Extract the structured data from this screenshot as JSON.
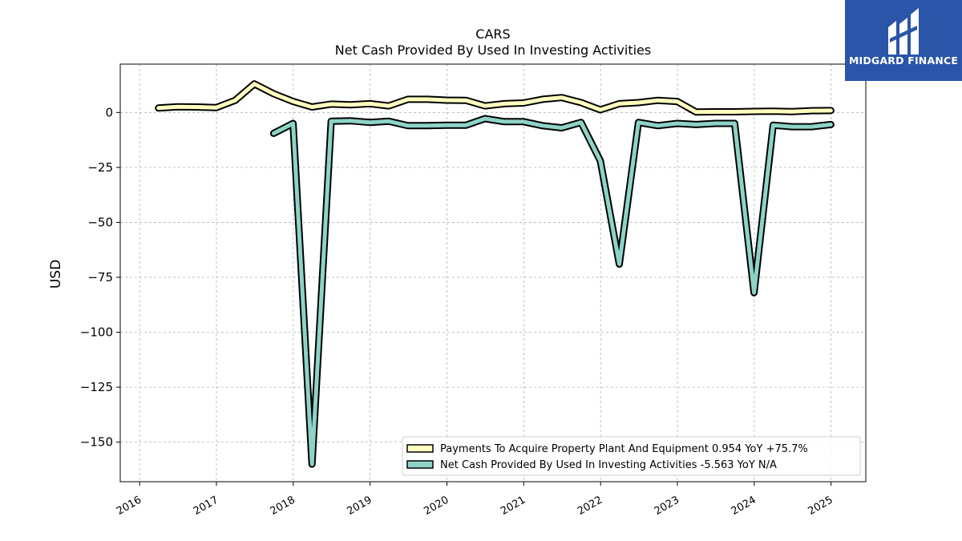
{
  "brand": {
    "name": "MIDGARD FINANCE",
    "colors": {
      "background": "#2a55a8",
      "text": "#ffffff"
    }
  },
  "chart_data": {
    "type": "line",
    "title": "CARS",
    "subtitle": "Net Cash Provided By Used In Investing Activities",
    "xlabel": "",
    "ylabel": "USD",
    "xlim": [
      "2015-10-01",
      "2025-06-15"
    ],
    "ylim": [
      -168,
      22
    ],
    "x_ticks": [
      "2016",
      "2017",
      "2018",
      "2019",
      "2020",
      "2021",
      "2022",
      "2023",
      "2024",
      "2025"
    ],
    "y_ticks": [
      0,
      -25,
      -50,
      -75,
      -100,
      -125,
      -150
    ],
    "y_tick_labels": [
      "0",
      "−25",
      "−50",
      "−75",
      "−100",
      "−125",
      "−150"
    ],
    "grid": true,
    "legend_position": "bottom-right",
    "series": [
      {
        "name": "Payments To Acquire Property Plant And Equipment",
        "legend_label": "Payments To Acquire Property Plant And Equipment  0.954 YoY +75.7%",
        "color": "#ffffbf",
        "x": [
          "2016-03-31",
          "2016-06-30",
          "2016-09-30",
          "2016-12-31",
          "2017-03-31",
          "2017-06-30",
          "2017-09-30",
          "2017-12-31",
          "2018-03-31",
          "2018-06-30",
          "2018-09-30",
          "2018-12-31",
          "2019-03-31",
          "2019-06-30",
          "2019-09-30",
          "2019-12-31",
          "2020-03-31",
          "2020-06-30",
          "2020-09-30",
          "2020-12-31",
          "2021-03-31",
          "2021-06-30",
          "2021-09-30",
          "2021-12-31",
          "2022-03-31",
          "2022-06-30",
          "2022-09-30",
          "2022-12-31",
          "2023-03-31",
          "2023-06-30",
          "2023-09-30",
          "2023-12-31",
          "2024-03-31",
          "2024-06-30",
          "2024-09-30",
          "2024-12-31"
        ],
        "values": [
          2,
          2.6,
          2.5,
          2.2,
          5.5,
          13,
          8.5,
          5,
          2.5,
          3.8,
          3.5,
          4,
          3,
          6,
          6,
          5.6,
          5.5,
          3,
          4,
          4.3,
          6,
          6.8,
          4.5,
          1.2,
          4,
          4.5,
          5.5,
          5,
          0.2,
          0.3,
          0.3,
          0.5,
          0.6,
          0.4,
          0.8,
          0.9
        ]
      },
      {
        "name": "Net Cash Provided By Used In Investing Activities",
        "legend_label": "Net Cash Provided By Used In Investing Activities  -5.563 YoY N/A",
        "color": "#8dd3c7",
        "x": [
          "2017-09-30",
          "2017-12-31",
          "2018-03-31",
          "2018-06-30",
          "2018-09-30",
          "2018-12-31",
          "2019-03-31",
          "2019-06-30",
          "2019-09-30",
          "2019-12-31",
          "2020-03-31",
          "2020-06-30",
          "2020-09-30",
          "2020-12-31",
          "2021-03-31",
          "2021-06-30",
          "2021-09-30",
          "2021-12-31",
          "2022-03-31",
          "2022-06-30",
          "2022-09-30",
          "2022-12-31",
          "2023-03-31",
          "2023-06-30",
          "2023-09-30",
          "2023-12-31",
          "2024-03-31",
          "2024-06-30",
          "2024-09-30",
          "2024-12-31"
        ],
        "values": [
          -9.5,
          -5,
          -160,
          -4,
          -3.8,
          -4.5,
          -4,
          -6,
          -6,
          -5.8,
          -5.8,
          -2.8,
          -4.2,
          -4.2,
          -6,
          -7,
          -4.5,
          -22,
          -69,
          -4.5,
          -6,
          -5,
          -5.5,
          -5,
          -5,
          -82,
          -5.8,
          -6.5,
          -6.5,
          -5.5
        ]
      }
    ]
  }
}
